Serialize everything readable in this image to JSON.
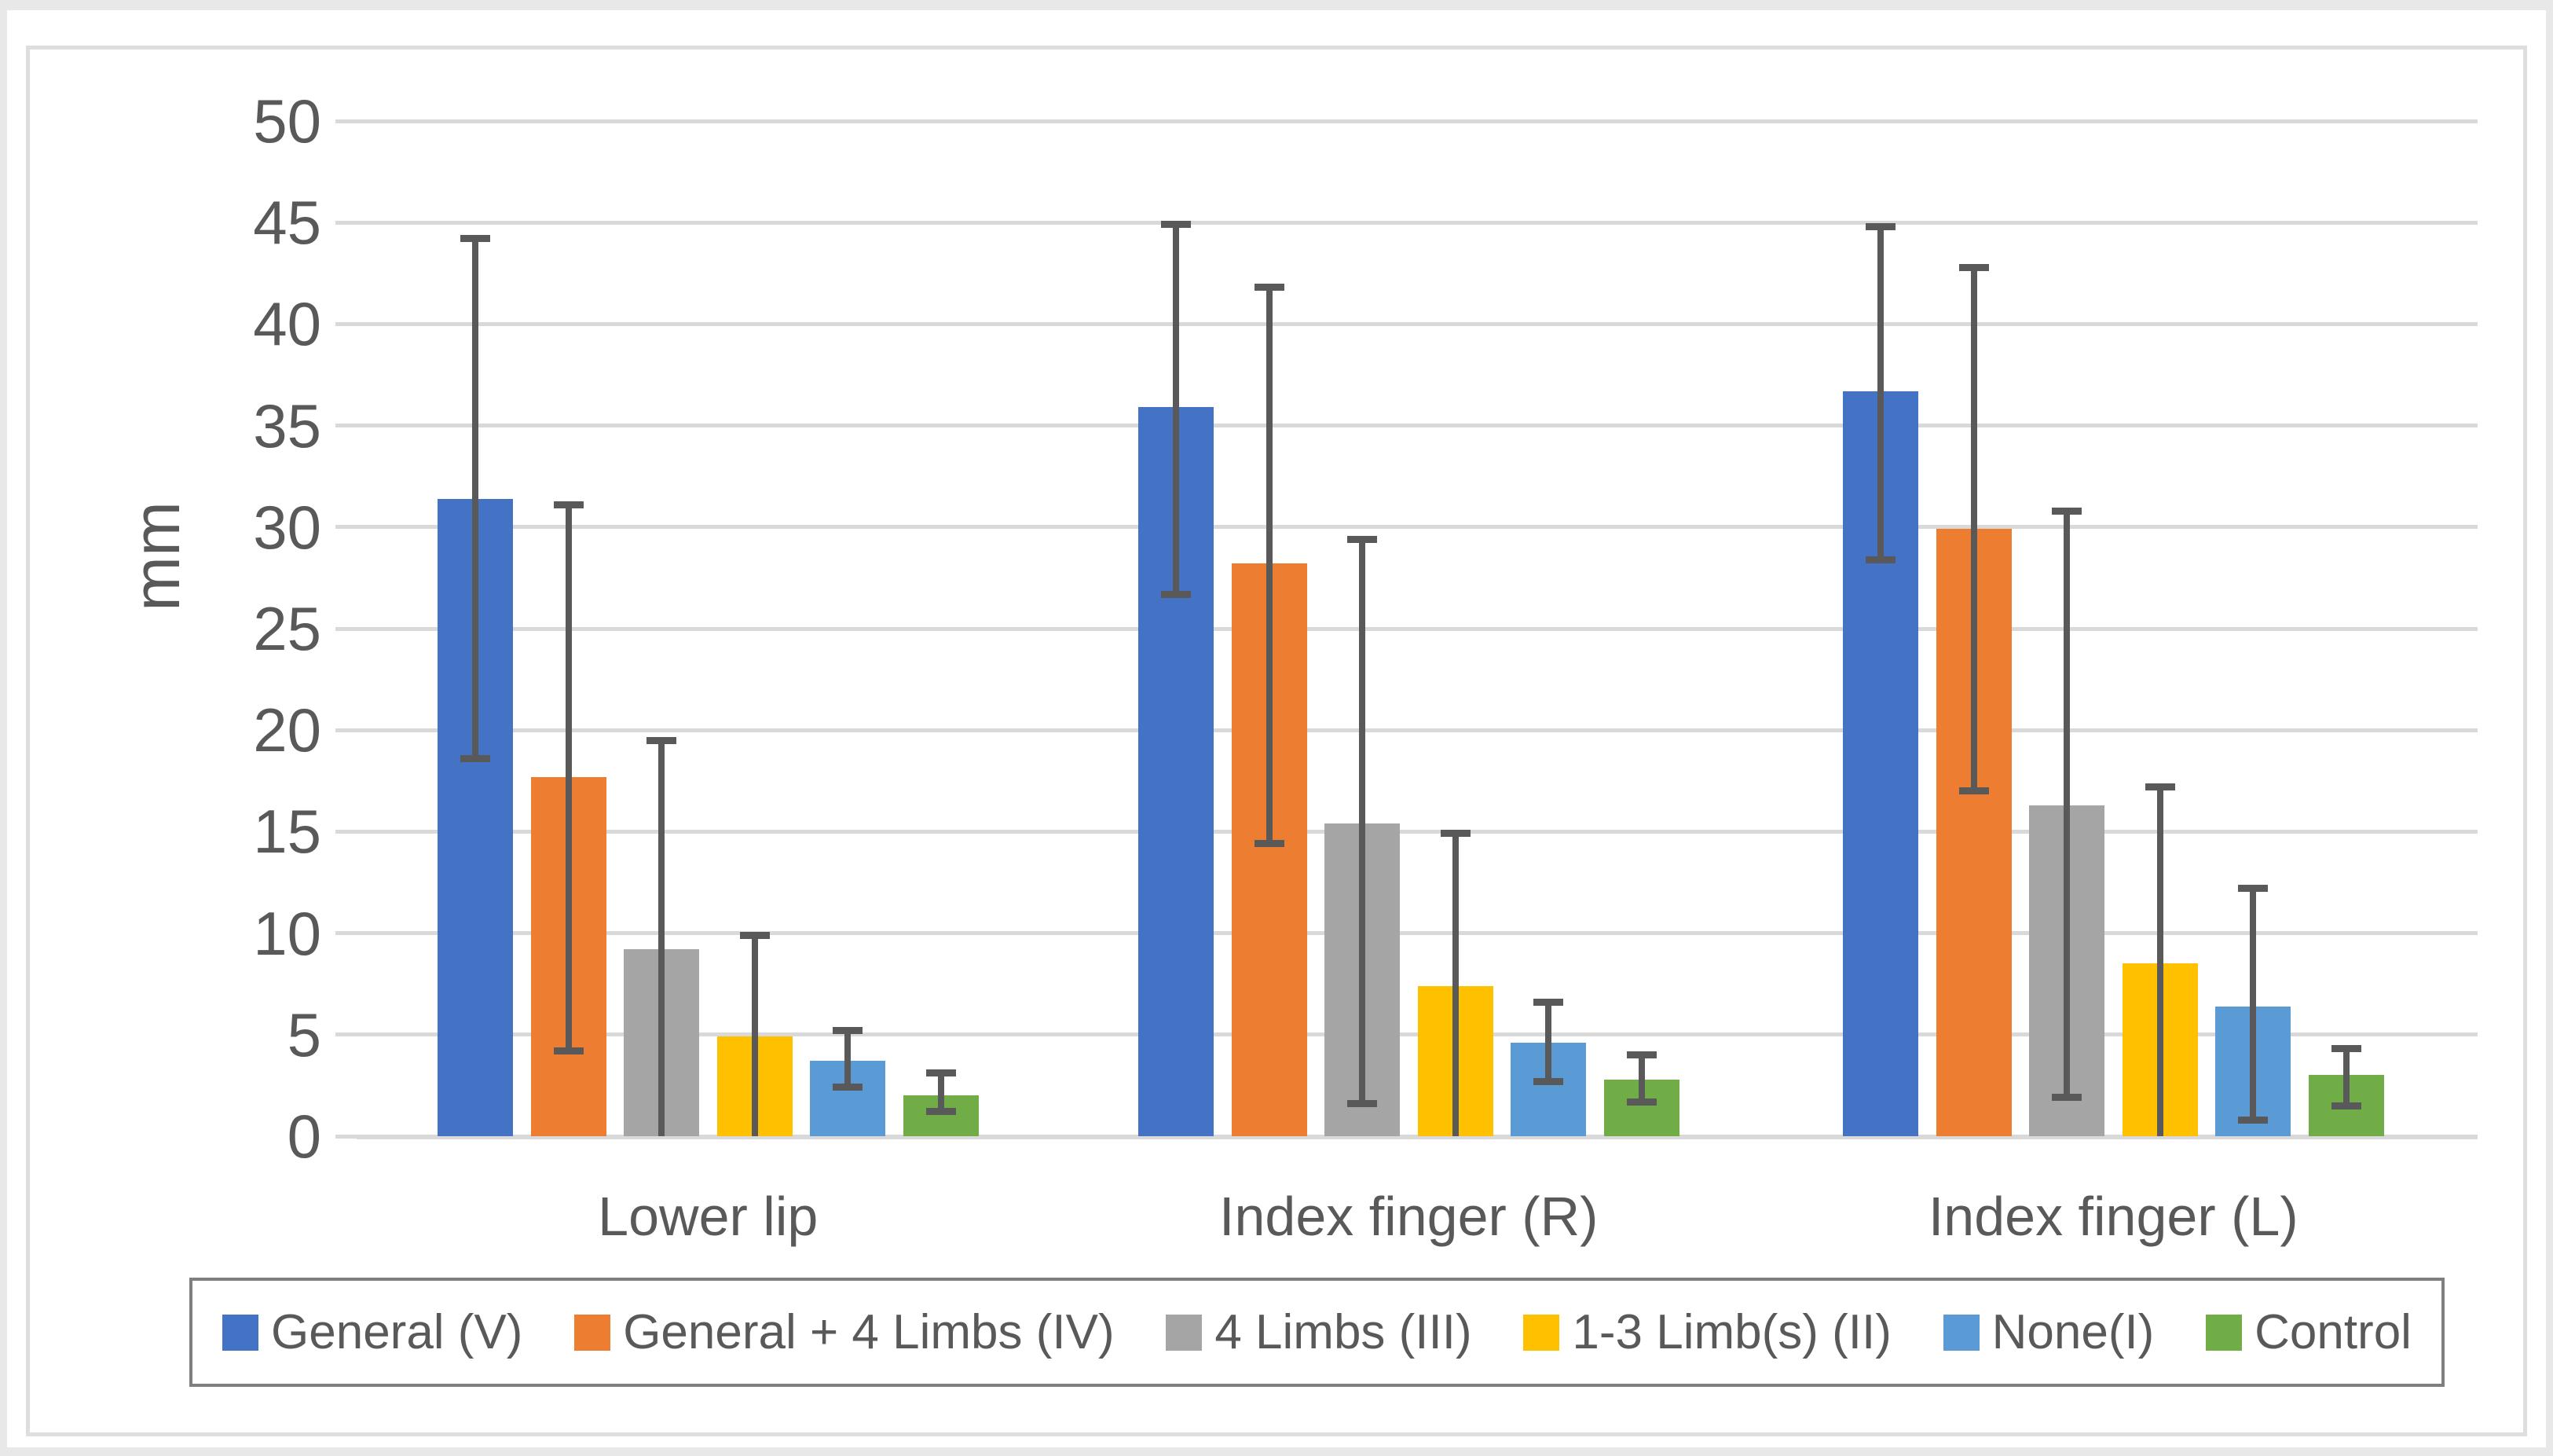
{
  "chart_data": {
    "type": "bar",
    "title": "",
    "xlabel": "",
    "ylabel": "mm",
    "ylim": [
      0,
      50
    ],
    "ytick_step": 5,
    "yticks": [
      0,
      5,
      10,
      15,
      20,
      25,
      30,
      35,
      40,
      45,
      50
    ],
    "grid": true,
    "legend_position": "bottom",
    "categories": [
      "Lower lip",
      "Index finger (R)",
      "Index finger (L)"
    ],
    "series": [
      {
        "name": "General (V)",
        "color": "#4472C4",
        "values": [
          31.4,
          35.9,
          36.7
        ],
        "error_high": [
          44.2,
          44.9,
          44.8
        ],
        "error_low": [
          18.6,
          26.7,
          28.4
        ]
      },
      {
        "name": "General + 4 Limbs (IV)",
        "color": "#ED7D31",
        "values": [
          17.7,
          28.2,
          29.9
        ],
        "error_high": [
          31.1,
          41.8,
          42.8
        ],
        "error_low": [
          4.2,
          14.4,
          17.0
        ]
      },
      {
        "name": "4 Limbs (III)",
        "color": "#A5A5A5",
        "values": [
          9.2,
          15.4,
          16.3
        ],
        "error_high": [
          19.5,
          29.4,
          30.8
        ],
        "error_low": [
          -1.1,
          1.6,
          1.9
        ]
      },
      {
        "name": "1-3 Limb(s) (II)",
        "color": "#FFC000",
        "values": [
          4.9,
          7.4,
          8.5
        ],
        "error_high": [
          9.9,
          14.9,
          17.2
        ],
        "error_low": [
          -0.1,
          -0.1,
          -0.2
        ]
      },
      {
        "name": "None(I)",
        "color": "#5B9BD5",
        "values": [
          3.7,
          4.6,
          6.4
        ],
        "error_high": [
          5.2,
          6.6,
          12.2
        ],
        "error_low": [
          2.4,
          2.7,
          0.8
        ]
      },
      {
        "name": "Control",
        "color": "#70AD47",
        "values": [
          2.0,
          2.8,
          3.0
        ],
        "error_high": [
          3.1,
          4.0,
          4.3
        ],
        "error_low": [
          1.2,
          1.7,
          1.5
        ]
      }
    ]
  },
  "colors": {
    "background": "#ffffff",
    "page_edge": "#e8e8e8",
    "chart_frame_border": "#dedede",
    "gridline": "#d9d9d9",
    "error_bar": "#595959",
    "axis_text": "#595959",
    "legend_border": "#7f7f7f"
  }
}
